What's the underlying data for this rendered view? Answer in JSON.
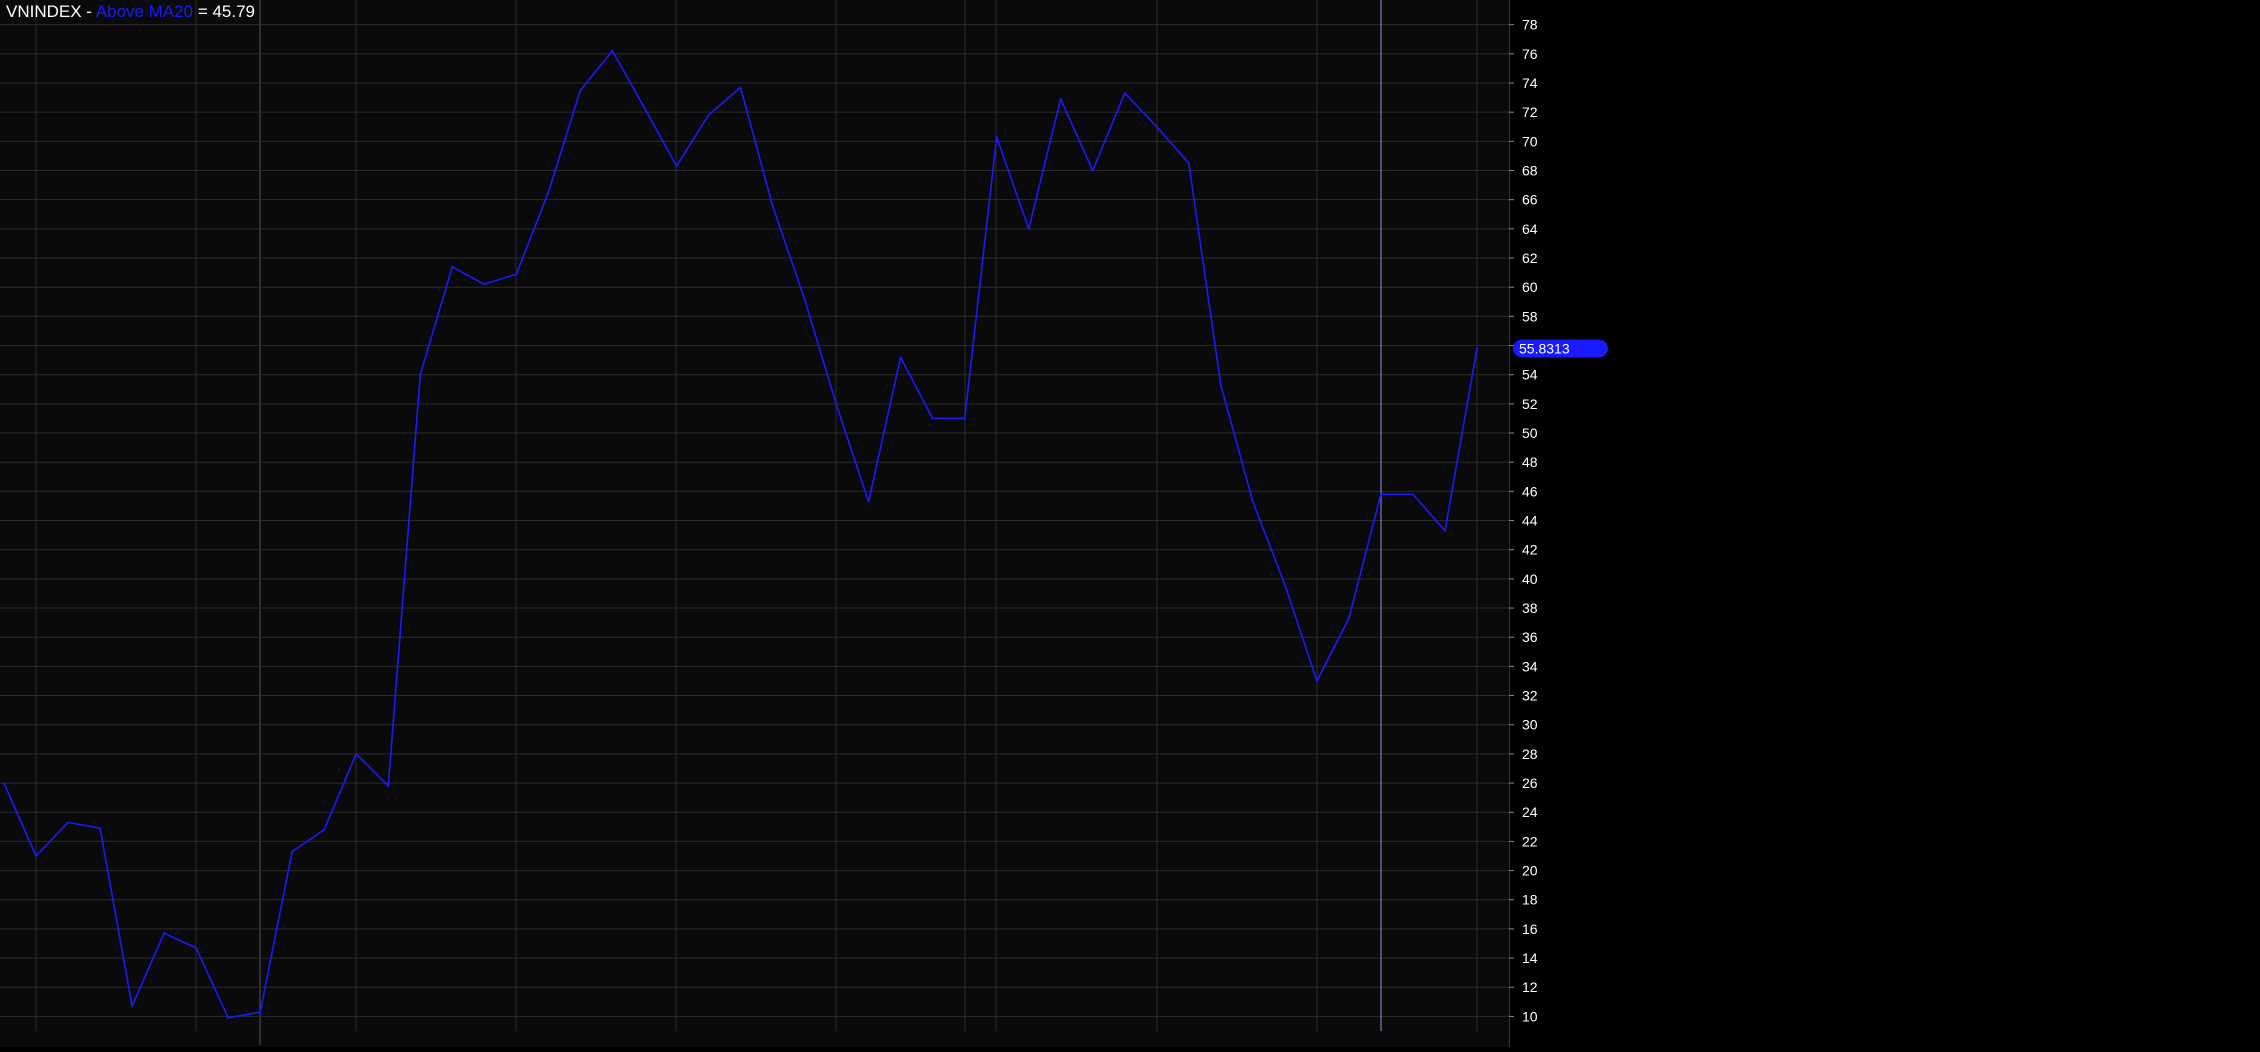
{
  "legend": {
    "symbol": "VNINDEX",
    "separator": " - ",
    "series_name": "Above MA20",
    "equals": " = ",
    "value": "45.79"
  },
  "price_badge": "55.8313",
  "colors": {
    "background": "#000000",
    "plot_background": "#0a0a0a",
    "grid": "#2a2a2a",
    "series": "#1a1aff",
    "axis_text": "#ffffff",
    "cursor_line": "#7f7fbf",
    "badge_bg": "#1a1aff",
    "badge_text": "#ffffff"
  },
  "chart_data": {
    "type": "line",
    "grid": true,
    "y_axis_position": "right",
    "ylim": [
      9,
      78.8
    ],
    "yticks": [
      10,
      12,
      14,
      16,
      18,
      20,
      22,
      24,
      26,
      28,
      30,
      32,
      34,
      36,
      38,
      40,
      42,
      44,
      46,
      48,
      50,
      52,
      54,
      56,
      58,
      60,
      62,
      64,
      66,
      68,
      70,
      72,
      74,
      76,
      78
    ],
    "series": [
      {
        "name": "Above MA20",
        "values": [
          26.0,
          21.0,
          23.3,
          22.9,
          10.7,
          15.7,
          14.7,
          9.9,
          10.3,
          21.3,
          22.8,
          28.0,
          25.8,
          54.0,
          61.4,
          60.2,
          60.9,
          66.5,
          73.5,
          76.2,
          72.3,
          68.3,
          71.8,
          73.7,
          65.6,
          59.2,
          51.9,
          45.3,
          55.2,
          51.0,
          51.0,
          70.3,
          64.0,
          72.9,
          68.0,
          73.3,
          71.0,
          68.5,
          53.3,
          45.3,
          39.6,
          33.0,
          37.3,
          45.8,
          45.8,
          43.3,
          55.8
        ]
      }
    ]
  }
}
